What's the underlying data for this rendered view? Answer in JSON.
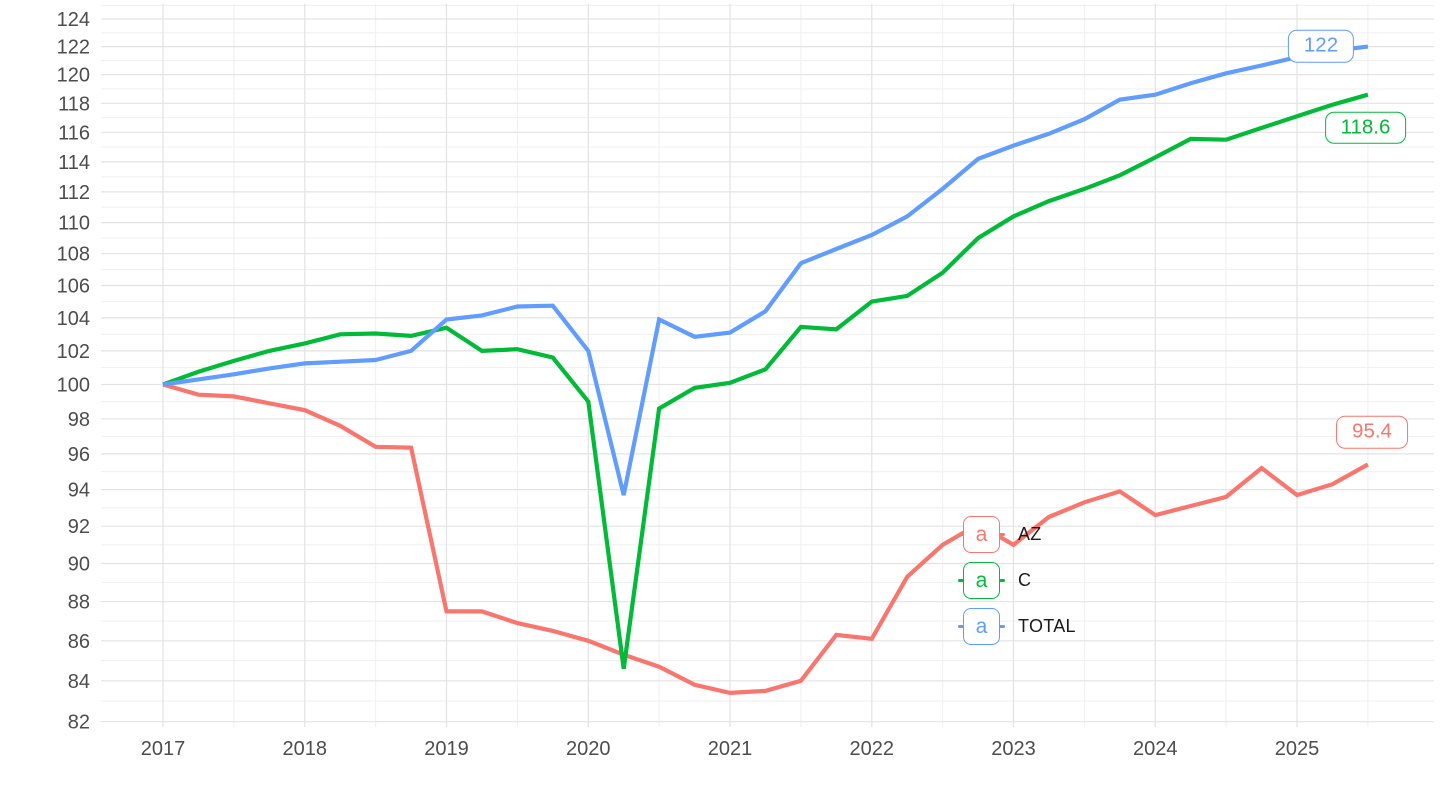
{
  "chart_data": {
    "type": "line",
    "title": "",
    "x": [
      2017.0,
      2017.25,
      2017.5,
      2017.75,
      2018.0,
      2018.25,
      2018.5,
      2018.75,
      2019.0,
      2019.25,
      2019.5,
      2019.75,
      2020.0,
      2020.25,
      2020.5,
      2020.75,
      2021.0,
      2021.25,
      2021.5,
      2021.75,
      2022.0,
      2022.25,
      2022.5,
      2022.75,
      2023.0,
      2023.25,
      2023.5,
      2023.75,
      2024.0,
      2024.25,
      2024.5,
      2024.75,
      2025.0,
      2025.25,
      2025.5
    ],
    "series": [
      {
        "name": "AZ",
        "color": "#F8766D",
        "values": [
          100,
          99.4,
          99.3,
          98.9,
          98.5,
          97.6,
          96.4,
          96.35,
          87.5,
          87.5,
          86.9,
          86.5,
          86.0,
          85.3,
          84.7,
          83.8,
          83.4,
          83.5,
          84.0,
          86.3,
          86.1,
          89.3,
          91.0,
          92.1,
          91.0,
          92.5,
          93.3,
          93.9,
          92.6,
          93.1,
          93.6,
          95.2,
          93.7,
          94.3,
          95.4
        ]
      },
      {
        "name": "C",
        "color": "#00BA38",
        "values": [
          100,
          100.75,
          101.4,
          102.0,
          102.45,
          103.0,
          103.05,
          102.9,
          103.4,
          102.0,
          102.1,
          101.6,
          99.0,
          84.6,
          98.6,
          99.8,
          100.1,
          100.9,
          103.45,
          103.3,
          105.0,
          105.35,
          106.8,
          109.0,
          110.4,
          111.4,
          112.2,
          113.1,
          114.3,
          115.55,
          115.5,
          116.3,
          117.1,
          117.9,
          118.6
        ]
      },
      {
        "name": "TOTAL",
        "color": "#619CFF",
        "values": [
          100,
          100.3,
          100.6,
          100.95,
          101.25,
          101.35,
          101.45,
          102.0,
          103.9,
          104.15,
          104.7,
          104.75,
          102.0,
          93.7,
          103.9,
          102.85,
          103.1,
          104.4,
          107.4,
          108.3,
          109.2,
          110.4,
          112.2,
          114.2,
          115.1,
          115.9,
          116.9,
          118.25,
          118.6,
          119.4,
          120.1,
          120.65,
          121.25,
          121.7,
          122.0
        ]
      }
    ],
    "x_axis": {
      "tick_values": [
        2017,
        2018,
        2019,
        2020,
        2021,
        2022,
        2023,
        2024,
        2025
      ],
      "tick_labels": [
        "2017",
        "2018",
        "2019",
        "2020",
        "2021",
        "2022",
        "2023",
        "2024",
        "2025"
      ],
      "minor_step": 0.5,
      "range": [
        2017.0,
        2025.5
      ]
    },
    "y_axis": {
      "scale": "log",
      "tick_values": [
        124,
        122,
        120,
        118,
        116,
        114,
        112,
        110,
        108,
        106,
        104,
        102,
        100,
        98,
        96,
        94,
        92,
        90,
        88,
        86,
        84,
        82
      ],
      "tick_labels": [
        "124",
        "122",
        "120",
        "118",
        "116",
        "114",
        "112",
        "110",
        "108",
        "106",
        "104",
        "102",
        "100",
        "98",
        "96",
        "94",
        "92",
        "90",
        "88",
        "86",
        "84",
        "82"
      ],
      "minor_values": [
        125,
        123,
        121,
        119,
        117,
        115,
        113,
        111,
        109,
        107,
        105,
        103,
        101,
        99,
        97,
        95,
        93,
        91,
        89,
        87,
        85,
        83
      ],
      "range": [
        82,
        124
      ],
      "grid": true
    },
    "end_labels": [
      {
        "series": "TOTAL",
        "text": "122"
      },
      {
        "series": "C",
        "text": "118.6"
      },
      {
        "series": "AZ",
        "text": "95.4"
      }
    ],
    "legend": {
      "symbol_char": "a",
      "entries": [
        {
          "label": "AZ",
          "color": "#F8766D"
        },
        {
          "label": "C",
          "color": "#00BA38"
        },
        {
          "label": "TOTAL",
          "color": "#619CFF"
        }
      ]
    }
  },
  "colors": {
    "background": "#ffffff",
    "grid_major": "#e3e3e3",
    "grid_minor": "#f1f1f1",
    "tick_text": "#4d4d4d",
    "legend_text": "#1a1a1a"
  }
}
